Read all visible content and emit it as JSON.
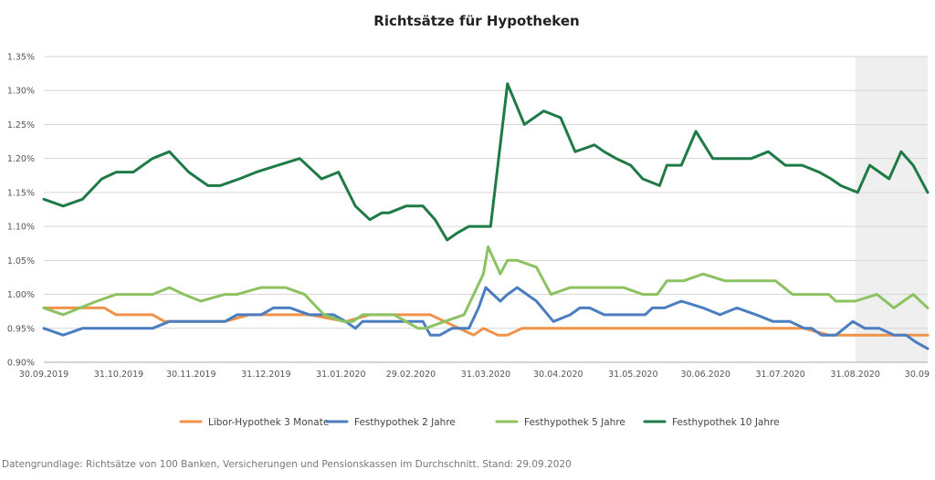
{
  "chart_data": {
    "type": "line",
    "title": "Richtsätze für Hypotheken",
    "xlabel": "",
    "ylabel": "",
    "x_tick_labels": [
      "30.09.2019",
      "31.10.2019",
      "30.11.2019",
      "31.12.2019",
      "31.01.2020",
      "29.02.2020",
      "31.03.2020",
      "30.04.2020",
      "31.05.2020",
      "30.06.2020",
      "31.07.2020",
      "31.08.2020",
      "30.09"
    ],
    "x_tick_days": [
      0,
      31,
      61,
      92,
      123,
      152,
      183,
      213,
      244,
      274,
      305,
      336,
      366
    ],
    "y_tick_labels": [
      "0.90%",
      "0.95%",
      "1.00%",
      "1.05%",
      "1.10%",
      "1.15%",
      "1.20%",
      "1.25%",
      "1.30%",
      "1.35%"
    ],
    "ylim": [
      0.9,
      1.35
    ],
    "xlim_days": [
      0,
      366
    ],
    "highlight_range_days": [
      336,
      366
    ],
    "grid": "horizontal",
    "legend_position": "bottom",
    "series": [
      {
        "name": "Libor-Hypothek 3 Monate",
        "color": "#f0924a",
        "points": [
          [
            0,
            0.98
          ],
          [
            5,
            0.98
          ],
          [
            20,
            0.98
          ],
          [
            25,
            0.98
          ],
          [
            30,
            0.97
          ],
          [
            35,
            0.97
          ],
          [
            45,
            0.97
          ],
          [
            50,
            0.96
          ],
          [
            60,
            0.96
          ],
          [
            75,
            0.96
          ],
          [
            85,
            0.97
          ],
          [
            95,
            0.97
          ],
          [
            110,
            0.97
          ],
          [
            125,
            0.96
          ],
          [
            135,
            0.97
          ],
          [
            150,
            0.97
          ],
          [
            160,
            0.97
          ],
          [
            166,
            0.96
          ],
          [
            172,
            0.95
          ],
          [
            178,
            0.94
          ],
          [
            182,
            0.95
          ],
          [
            188,
            0.94
          ],
          [
            192,
            0.94
          ],
          [
            198,
            0.95
          ],
          [
            210,
            0.95
          ],
          [
            240,
            0.95
          ],
          [
            270,
            0.95
          ],
          [
            300,
            0.95
          ],
          [
            315,
            0.95
          ],
          [
            325,
            0.94
          ],
          [
            340,
            0.94
          ],
          [
            366,
            0.94
          ]
        ]
      },
      {
        "name": "Festhypothek 2 Jahre",
        "color": "#4b7ec0",
        "points": [
          [
            0,
            0.95
          ],
          [
            8,
            0.94
          ],
          [
            16,
            0.95
          ],
          [
            25,
            0.95
          ],
          [
            35,
            0.95
          ],
          [
            45,
            0.95
          ],
          [
            52,
            0.96
          ],
          [
            62,
            0.96
          ],
          [
            75,
            0.96
          ],
          [
            80,
            0.97
          ],
          [
            90,
            0.97
          ],
          [
            95,
            0.98
          ],
          [
            102,
            0.98
          ],
          [
            110,
            0.97
          ],
          [
            115,
            0.97
          ],
          [
            120,
            0.97
          ],
          [
            125,
            0.96
          ],
          [
            129,
            0.95
          ],
          [
            132,
            0.96
          ],
          [
            140,
            0.96
          ],
          [
            150,
            0.96
          ],
          [
            157,
            0.96
          ],
          [
            160,
            0.94
          ],
          [
            164,
            0.94
          ],
          [
            169,
            0.95
          ],
          [
            176,
            0.95
          ],
          [
            180,
            0.98
          ],
          [
            183,
            1.01
          ],
          [
            189,
            0.99
          ],
          [
            192,
            1.0
          ],
          [
            196,
            1.01
          ],
          [
            204,
            0.99
          ],
          [
            211,
            0.96
          ],
          [
            218,
            0.97
          ],
          [
            222,
            0.98
          ],
          [
            226,
            0.98
          ],
          [
            232,
            0.97
          ],
          [
            240,
            0.97
          ],
          [
            249,
            0.97
          ],
          [
            252,
            0.98
          ],
          [
            257,
            0.98
          ],
          [
            264,
            0.99
          ],
          [
            273,
            0.98
          ],
          [
            280,
            0.97
          ],
          [
            287,
            0.98
          ],
          [
            295,
            0.97
          ],
          [
            302,
            0.96
          ],
          [
            309,
            0.96
          ],
          [
            315,
            0.95
          ],
          [
            318,
            0.95
          ],
          [
            322,
            0.94
          ],
          [
            328,
            0.94
          ],
          [
            335,
            0.96
          ],
          [
            340,
            0.95
          ],
          [
            346,
            0.95
          ],
          [
            352,
            0.94
          ],
          [
            357,
            0.94
          ],
          [
            361,
            0.93
          ],
          [
            366,
            0.92
          ]
        ]
      },
      {
        "name": "Festhypothek 5 Jahre",
        "color": "#8cc262",
        "points": [
          [
            0,
            0.98
          ],
          [
            8,
            0.97
          ],
          [
            15,
            0.98
          ],
          [
            22,
            0.99
          ],
          [
            30,
            1.0
          ],
          [
            38,
            1.0
          ],
          [
            45,
            1.0
          ],
          [
            52,
            1.01
          ],
          [
            58,
            1.0
          ],
          [
            65,
            0.99
          ],
          [
            75,
            1.0
          ],
          [
            80,
            1.0
          ],
          [
            90,
            1.01
          ],
          [
            100,
            1.01
          ],
          [
            108,
            1.0
          ],
          [
            116,
            0.97
          ],
          [
            124,
            0.96
          ],
          [
            128,
            0.96
          ],
          [
            132,
            0.97
          ],
          [
            145,
            0.97
          ],
          [
            155,
            0.95
          ],
          [
            158,
            0.95
          ],
          [
            166,
            0.96
          ],
          [
            174,
            0.97
          ],
          [
            178,
            1.0
          ],
          [
            182,
            1.03
          ],
          [
            184,
            1.07
          ],
          [
            189,
            1.03
          ],
          [
            192,
            1.05
          ],
          [
            196,
            1.05
          ],
          [
            204,
            1.04
          ],
          [
            210,
            1.0
          ],
          [
            218,
            1.01
          ],
          [
            228,
            1.01
          ],
          [
            240,
            1.01
          ],
          [
            248,
            1.0
          ],
          [
            254,
            1.0
          ],
          [
            258,
            1.02
          ],
          [
            265,
            1.02
          ],
          [
            273,
            1.03
          ],
          [
            282,
            1.02
          ],
          [
            295,
            1.02
          ],
          [
            303,
            1.02
          ],
          [
            310,
            1.0
          ],
          [
            318,
            1.0
          ],
          [
            325,
            1.0
          ],
          [
            328,
            0.99
          ],
          [
            336,
            0.99
          ],
          [
            345,
            1.0
          ],
          [
            352,
            0.98
          ],
          [
            360,
            1.0
          ],
          [
            366,
            0.98
          ]
        ]
      },
      {
        "name": "Festhypothek 10 Jahre",
        "color": "#1e7a46",
        "points": [
          [
            0,
            1.14
          ],
          [
            8,
            1.13
          ],
          [
            16,
            1.14
          ],
          [
            24,
            1.17
          ],
          [
            30,
            1.18
          ],
          [
            37,
            1.18
          ],
          [
            45,
            1.2
          ],
          [
            52,
            1.21
          ],
          [
            60,
            1.18
          ],
          [
            68,
            1.16
          ],
          [
            73,
            1.16
          ],
          [
            81,
            1.17
          ],
          [
            88,
            1.18
          ],
          [
            97,
            1.19
          ],
          [
            106,
            1.2
          ],
          [
            115,
            1.17
          ],
          [
            122,
            1.18
          ],
          [
            129,
            1.13
          ],
          [
            135,
            1.11
          ],
          [
            140,
            1.12
          ],
          [
            143,
            1.12
          ],
          [
            150,
            1.13
          ],
          [
            157,
            1.13
          ],
          [
            162,
            1.11
          ],
          [
            167,
            1.08
          ],
          [
            171,
            1.09
          ],
          [
            176,
            1.1
          ],
          [
            180,
            1.1
          ],
          [
            185,
            1.1
          ],
          [
            192,
            1.31
          ],
          [
            199,
            1.25
          ],
          [
            203,
            1.26
          ],
          [
            207,
            1.27
          ],
          [
            214,
            1.26
          ],
          [
            220,
            1.21
          ],
          [
            228,
            1.22
          ],
          [
            232,
            1.21
          ],
          [
            237,
            1.2
          ],
          [
            243,
            1.19
          ],
          [
            248,
            1.17
          ],
          [
            255,
            1.16
          ],
          [
            258,
            1.19
          ],
          [
            264,
            1.19
          ],
          [
            270,
            1.24
          ],
          [
            277,
            1.2
          ],
          [
            285,
            1.2
          ],
          [
            293,
            1.2
          ],
          [
            300,
            1.21
          ],
          [
            307,
            1.19
          ],
          [
            314,
            1.19
          ],
          [
            321,
            1.18
          ],
          [
            326,
            1.17
          ],
          [
            330,
            1.16
          ],
          [
            337,
            1.15
          ],
          [
            342,
            1.19
          ],
          [
            350,
            1.17
          ],
          [
            355,
            1.21
          ],
          [
            360,
            1.19
          ],
          [
            366,
            1.15
          ]
        ]
      }
    ]
  },
  "footnote": {
    "text": "Datengrundlage: Richtsätze von 100 Banken, Versicherungen und Pensionskassen im Durchschnitt. Stand: 29.09.2020"
  }
}
